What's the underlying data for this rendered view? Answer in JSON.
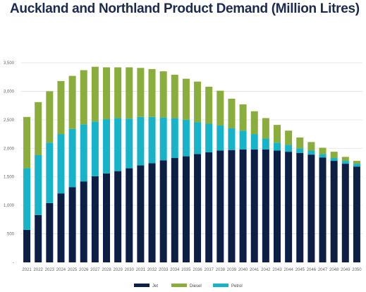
{
  "chart_data": {
    "type": "bar",
    "stacked": true,
    "title": "Auckland and Northland Product Demand (Million Litres)",
    "xlabel": "",
    "ylabel": "",
    "ylim": [
      0,
      3500
    ],
    "yticks": [
      0,
      500,
      1000,
      1500,
      2000,
      2500,
      3000,
      3500
    ],
    "ytick_labels": [
      "-",
      "500",
      "1,000",
      "1,500",
      "2,000",
      "2,500",
      "3,000",
      "3,500"
    ],
    "grid": true,
    "legend_position": "bottom",
    "categories": [
      "2021",
      "2022",
      "2023",
      "2024",
      "2025",
      "2026",
      "2027",
      "2028",
      "2029",
      "2030",
      "2031",
      "2032",
      "2033",
      "2034",
      "2035",
      "2036",
      "2037",
      "2038",
      "2039",
      "2040",
      "2041",
      "2042",
      "2043",
      "2044",
      "2045",
      "2046",
      "2047",
      "2048",
      "2049",
      "2050"
    ],
    "series": [
      {
        "name": "Jet",
        "color": "#0d1f45",
        "values": [
          570,
          830,
          1040,
          1210,
          1320,
          1420,
          1510,
          1560,
          1600,
          1650,
          1700,
          1740,
          1790,
          1830,
          1860,
          1900,
          1930,
          1960,
          1970,
          1980,
          1980,
          1980,
          1960,
          1940,
          1920,
          1890,
          1840,
          1780,
          1730,
          1680
        ]
      },
      {
        "name": "Petrol",
        "color": "#17b3c8",
        "values": [
          1080,
          1050,
          1060,
          1040,
          1020,
          1000,
          960,
          950,
          930,
          870,
          850,
          810,
          750,
          700,
          640,
          560,
          500,
          440,
          380,
          330,
          270,
          190,
          140,
          120,
          80,
          70,
          60,
          50,
          50,
          50
        ]
      },
      {
        "name": "Diesel",
        "color": "#8aae3c",
        "values": [
          900,
          930,
          900,
          930,
          930,
          950,
          960,
          910,
          890,
          900,
          860,
          840,
          810,
          760,
          720,
          710,
          650,
          610,
          520,
          460,
          400,
          360,
          310,
          250,
          190,
          150,
          110,
          110,
          70,
          50
        ]
      }
    ]
  }
}
